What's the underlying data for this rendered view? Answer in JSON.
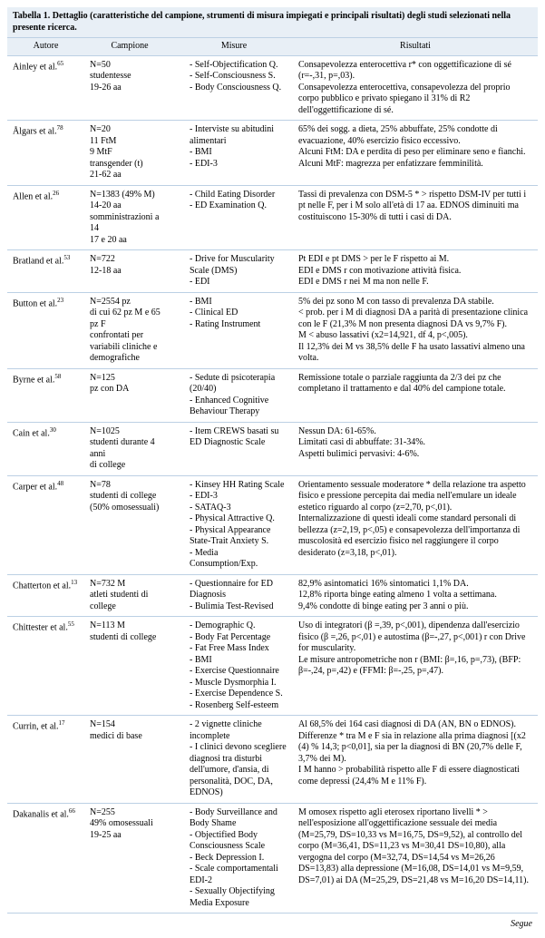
{
  "caption": "Tabella 1. Dettaglio (caratteristiche del campione, strumenti di misura impiegati e principali risultati) degli studi selezionati nella presente ricerca.",
  "headers": {
    "author": "Autore",
    "sample": "Campione",
    "measures": "Misure",
    "results": "Risultati"
  },
  "rows": [
    {
      "author": "Ainley et al.",
      "author_ref": "65",
      "sample": "N=50\nstudentesse\n19-26 aa",
      "measures": [
        "Self-Objectification Q.",
        "Self-Consciousness S.",
        "Body Consciousness Q."
      ],
      "results": "Consapevolezza enterocettiva r* con oggettificazione di sé (r=-,31, p=,03).\nConsapevolezza enterocettiva, consapevolezza del proprio corpo pubblico e privato spiegano il 31% di R2 dell'oggettificazione di sé."
    },
    {
      "author": "Ålgars et al.",
      "author_ref": "78",
      "sample": "N=20\n11 FtM\n9 MtF\ntransgender (t)\n21-62 aa",
      "measures": [
        "Interviste su abitudini alimentari",
        "BMI",
        "EDI-3"
      ],
      "results": "65% dei sogg. a dieta, 25% abbuffate, 25% condotte di evacuazione, 40% esercizio fisico eccessivo.\nAlcuni FtM: DA e perdita di peso per eliminare seno e fianchi.\nAlcuni MtF: magrezza per enfatizzare femminilità."
    },
    {
      "author": "Allen et al.",
      "author_ref": "26",
      "sample": "N=1383 (49% M)\n14-20 aa\nsomministrazioni a 14\n17 e 20 aa",
      "measures": [
        "Child Eating Disorder",
        "ED Examination Q."
      ],
      "results": "Tassi di prevalenza con DSM-5 * > rispetto DSM-IV per tutti i pt nelle F, per i M solo all'età di 17 aa. EDNOS diminuiti ma costituiscono 15-30% di tutti i casi di DA."
    },
    {
      "author": "Bratland et al.",
      "author_ref": "53",
      "sample": "N=722\n12-18 aa",
      "measures": [
        "Drive for Muscularity Scale (DMS)",
        "EDI"
      ],
      "results": "Pt EDI e pt DMS > per le F rispetto ai M.\nEDI e DMS r con motivazione attività fisica.\nEDI e DMS r nei M ma non nelle F."
    },
    {
      "author": "Button et al.",
      "author_ref": "23",
      "sample": "N=2554 pz\ndi cui 62 pz M e 65 pz F\nconfrontati per\nvariabili cliniche e\ndemografiche",
      "measures": [
        "BMI",
        "Clinical ED",
        "Rating Instrument"
      ],
      "results": "5% dei pz sono M con tasso di prevalenza DA stabile.\n< prob. per i M di diagnosi DA a parità di presentazione clinica con le F (21,3% M non presenta diagnosi DA vs 9,7% F).\nM < abuso lassativi (x2=14,921, df 4, p<,005).\nIl 12,3% dei M vs 38,5% delle F ha usato lassativi almeno una volta."
    },
    {
      "author": "Byrne et al.",
      "author_ref": "58",
      "sample": "N=125\npz con DA",
      "measures": [
        "Sedute di psicoterapia (20/40)",
        "Enhanced Cognitive Behaviour Therapy"
      ],
      "results": "Remissione totale o parziale raggiunta da 2/3 dei pz che completano il trattamento e dal 40% del campione totale."
    },
    {
      "author": "Cain et al.",
      "author_ref": "30",
      "sample": "N=1025\nstudenti durante 4 anni\ndi college",
      "measures": [
        "Item CREWS basati su ED Diagnostic Scale"
      ],
      "results": "Nessun DA: 61-65%.\nLimitati casi di abbuffate: 31-34%.\nAspetti bulimici pervasivi: 4-6%."
    },
    {
      "author": "Carper et al.",
      "author_ref": "48",
      "sample": "N=78\nstudenti di college\n(50% omosessuali)",
      "measures": [
        "Kinsey HH Rating Scale",
        "EDI-3",
        "SATAQ-3",
        "Physical Attractive Q.",
        "Physical Appearance State-Trait Anxiety S.",
        "Media Consumption/Exp."
      ],
      "results": "Orientamento sessuale moderatore * della relazione tra aspetto fisico e pressione percepita dai media nell'emulare un ideale estetico riguardo al corpo (z=2,70, p<,01).\nInternalizzazione di questi ideali come standard personali di bellezza (z=2,19, p<,05) e consapevolezza dell'importanza di muscolosità ed esercizio fisico nel raggiungere il corpo desiderato (z=3,18, p<,01)."
    },
    {
      "author": "Chatterton et al.",
      "author_ref": "13",
      "sample": "N=732 M\natleti studenti di college",
      "measures": [
        "Questionnaire for ED Diagnosis",
        "Bulimia Test-Revised"
      ],
      "results": "82,9% asintomatici 16% sintomatici 1,1% DA.\n12,8% riporta binge eating almeno 1 volta a settimana.\n9,4% condotte di binge eating per 3 anni o più."
    },
    {
      "author": "Chittester et al.",
      "author_ref": "55",
      "sample": "N=113 M\nstudenti di college",
      "measures": [
        "Demographic Q.",
        "Body Fat Percentage",
        "Fat Free Mass Index",
        "BMI",
        "Exercise Questionnaire",
        "Muscle Dysmorphia I.",
        "Exercise Dependence S.",
        "Rosenberg Self-esteem"
      ],
      "results": "Uso di integratori (β =,39, p<,001), dipendenza dall'esercizio fisico (β =,26, p<,01) e autostima (β=-,27, p<,001) r con Drive for muscularity.\nLe misure antropometriche non r (BMI: β=,16, p=,73), (BFP: β=-,24, p=,42) e (FFMI: β=-,25, p=,47)."
    },
    {
      "author": "Currin, et al.",
      "author_ref": "17",
      "sample": "N=154\nmedici di base",
      "measures": [
        "2 vignette cliniche incomplete",
        "I clinici devono scegliere diagnosi tra disturbi dell'umore, d'ansia, di personalità, DOC, DA, EDNOS)"
      ],
      "results": "Al 68,5% dei 164 casi diagnosi di DA (AN, BN o EDNOS).\nDifferenze * tra M e F sia in relazione alla prima diagnosi [(x2 (4) % 14,3; p<0,01], sia per la diagnosi di BN (20,7% delle F, 3,7% dei M).\nI M hanno > probabilità rispetto alle F di essere diagnosticati come depressi (24,4% M e 11% F)."
    },
    {
      "author": "Dakanalis et al.",
      "author_ref": "66",
      "sample": "N=255\n49% omosessuali\n19-25 aa",
      "measures": [
        "Body Surveillance and Body Shame",
        "Objectified Body Consciousness Scale",
        "Beck Depression I.",
        "Scale comportamentali EDI-2",
        "Sexually Objectifying Media Exposure"
      ],
      "results": "M omosex rispetto agli eterosex riportano livelli * > nell'esposizione all'oggettificazione sessuale dei media (M=25,79, DS=10,33 vs M=16,75, DS=9,52), al controllo del corpo (M=36,41, DS=11,23 vs M=30,41 DS=10,80), alla vergogna del corpo (M=32,74, DS=14,54 vs M=26,26 DS=13,83) alla depressione (M=16,08, DS=14,01 vs M=9,59, DS=7,01) ai DA (M=25,29, DS=21,48 vs M=16,20 DS=14,11)."
    }
  ],
  "footer": "Segue",
  "colors": {
    "header_bg": "#e8eff6",
    "border": "#bcd0e4",
    "text": "#000000",
    "bg": "#ffffff"
  }
}
